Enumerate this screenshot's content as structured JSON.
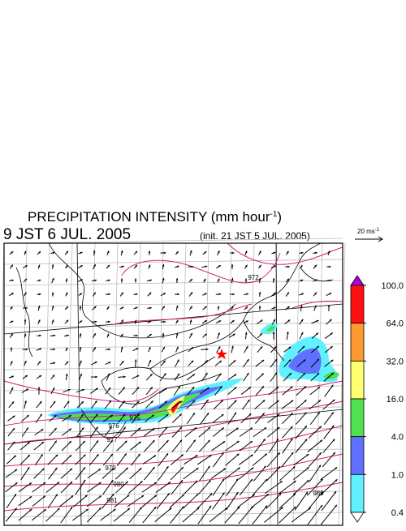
{
  "header": {
    "title": {
      "text": "PRECIPITATION INTENSITY (mm hour",
      "superscript": "-1",
      "suffix": ")"
    },
    "valid_time": "9 JST 6 JUL. 2005",
    "init_time": "(init. 21 JST 5 JUL. 2005)"
  },
  "wind_scale": {
    "text": "20 ms",
    "superscript": "-1"
  },
  "colorbar": {
    "levels": [
      {
        "value": 100,
        "label": "100.0"
      },
      {
        "value": 64,
        "label": "64.0"
      },
      {
        "value": 32,
        "label": "32.0"
      },
      {
        "value": 16,
        "label": "16.0"
      },
      {
        "value": 4,
        "label": "4.0"
      },
      {
        "value": 1,
        "label": "1.0"
      },
      {
        "value": 0.4,
        "label": "0.4"
      }
    ],
    "colors": [
      "#b000e0",
      "#ff1010",
      "#ff9a30",
      "#ffff70",
      "#50e050",
      "#6070ff",
      "#60f0ff",
      "#ffffff"
    ]
  },
  "contour_labels": [
    972,
    975,
    976,
    977,
    979,
    980,
    981,
    989
  ]
}
